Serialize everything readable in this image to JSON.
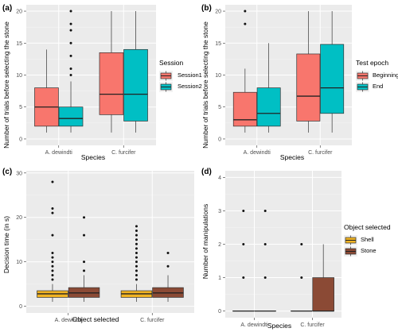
{
  "chart_data": [
    {
      "panel_label": "(a)",
      "type": "box",
      "xlabel": "Species",
      "ylabel": "Number of trials before selecting the stone",
      "ylim": [
        -1,
        21
      ],
      "yticks": [
        0,
        5,
        10,
        15,
        20
      ],
      "categories": [
        "A. dewindti",
        "C. furcifer"
      ],
      "legend": {
        "title": "Session",
        "placement": "right"
      },
      "series": [
        {
          "name": "Session1",
          "color": "#F8766D",
          "boxes": [
            {
              "q1": 2,
              "median": 5,
              "q3": 8,
              "whisker_low": 1,
              "whisker_high": 14,
              "outliers": []
            },
            {
              "q1": 3.8,
              "median": 7,
              "q3": 13.5,
              "whisker_low": 1,
              "whisker_high": 20,
              "outliers": []
            }
          ]
        },
        {
          "name": "Session2",
          "color": "#00BFC4",
          "boxes": [
            {
              "q1": 2,
              "median": 3.2,
              "q3": 5,
              "whisker_low": 1,
              "whisker_high": 9,
              "outliers": [
                10,
                11,
                13,
                15,
                17,
                18,
                20
              ]
            },
            {
              "q1": 2.8,
              "median": 7,
              "q3": 14,
              "whisker_low": 1,
              "whisker_high": 20,
              "outliers": []
            }
          ]
        }
      ]
    },
    {
      "panel_label": "(b)",
      "type": "box",
      "xlabel": "Species",
      "ylabel": "Number of trials before selecting the stone",
      "ylim": [
        -1,
        21
      ],
      "yticks": [
        0,
        5,
        10,
        15,
        20
      ],
      "categories": [
        "A. dewindti",
        "C. furcifer"
      ],
      "legend": {
        "title": "Test epoch",
        "placement": "right"
      },
      "series": [
        {
          "name": "Beginning",
          "color": "#F8766D",
          "boxes": [
            {
              "q1": 2,
              "median": 3,
              "q3": 7.3,
              "whisker_low": 1,
              "whisker_high": 11,
              "outliers": [
                18,
                20
              ]
            },
            {
              "q1": 2.8,
              "median": 6.7,
              "q3": 13.3,
              "whisker_low": 1,
              "whisker_high": 20,
              "outliers": []
            }
          ]
        },
        {
          "name": "End",
          "color": "#00BFC4",
          "boxes": [
            {
              "q1": 2,
              "median": 4,
              "q3": 8,
              "whisker_low": 1,
              "whisker_high": 15,
              "outliers": []
            },
            {
              "q1": 4,
              "median": 8,
              "q3": 14.8,
              "whisker_low": 1,
              "whisker_high": 20,
              "outliers": []
            }
          ]
        }
      ]
    },
    {
      "panel_label": "(c)",
      "type": "box",
      "xlabel": "Object selected",
      "ylabel": "Decision time (in s)",
      "ylim": [
        -1.5,
        30.5
      ],
      "yticks": [
        0,
        10,
        20,
        30
      ],
      "categories": [
        "A. dewindti",
        "C. furcifer"
      ],
      "legend": {
        "title": "",
        "placement": "none"
      },
      "series": [
        {
          "name": "Shell",
          "color": "#F0B323",
          "boxes": [
            {
              "q1": 2,
              "median": 2.8,
              "q3": 3.5,
              "whisker_low": 1,
              "whisker_high": 5,
              "outliers": [
                6,
                7,
                8,
                9,
                10,
                11,
                12,
                16,
                21,
                22,
                28
              ]
            },
            {
              "q1": 2,
              "median": 2.8,
              "q3": 3.5,
              "whisker_low": 1,
              "whisker_high": 5,
              "outliers": [
                6,
                7,
                8,
                9,
                10,
                11,
                12,
                13,
                14,
                15,
                16,
                17,
                18
              ]
            }
          ]
        },
        {
          "name": "Stone",
          "color": "#8B4A35",
          "boxes": [
            {
              "q1": 2,
              "median": 3,
              "q3": 4.2,
              "whisker_low": 1,
              "whisker_high": 7,
              "outliers": [
                8,
                10,
                16,
                20
              ]
            },
            {
              "q1": 2,
              "median": 3,
              "q3": 4.2,
              "whisker_low": 1,
              "whisker_high": 7,
              "outliers": [
                9,
                12
              ]
            }
          ]
        }
      ]
    },
    {
      "panel_label": "(d)",
      "type": "box",
      "xlabel": "Species",
      "ylabel": "Number of manipulations",
      "ylim": [
        -0.2,
        4.2
      ],
      "yticks": [
        0,
        1,
        2,
        3,
        4
      ],
      "categories": [
        "A. dewindti",
        "C. furcifer"
      ],
      "legend": {
        "title": "Object selected",
        "placement": "right"
      },
      "series": [
        {
          "name": "Shell",
          "color": "#F0B323",
          "boxes": [
            {
              "q1": 0,
              "median": 0,
              "q3": 0,
              "whisker_low": 0,
              "whisker_high": 0,
              "outliers": [
                1,
                2,
                3
              ]
            },
            {
              "q1": 0,
              "median": 0,
              "q3": 0,
              "whisker_low": 0,
              "whisker_high": 0,
              "outliers": [
                1,
                2
              ]
            }
          ]
        },
        {
          "name": "Stone",
          "color": "#8B4A35",
          "boxes": [
            {
              "q1": 0,
              "median": 0,
              "q3": 0,
              "whisker_low": 0,
              "whisker_high": 0,
              "outliers": [
                1,
                2,
                3
              ]
            },
            {
              "q1": 0,
              "median": 0,
              "q3": 1,
              "whisker_low": 0,
              "whisker_high": 2,
              "outliers": []
            }
          ]
        }
      ]
    }
  ]
}
